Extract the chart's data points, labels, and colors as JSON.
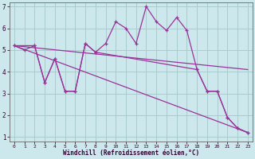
{
  "xlabel": "Windchill (Refroidissement éolien,°C)",
  "background_color": "#cce8ec",
  "grid_color": "#aacccc",
  "line_color": "#993399",
  "xlim": [
    -0.5,
    23.5
  ],
  "ylim": [
    0.8,
    7.2
  ],
  "xticks": [
    0,
    1,
    2,
    3,
    4,
    5,
    6,
    7,
    8,
    9,
    10,
    11,
    12,
    13,
    14,
    15,
    16,
    17,
    18,
    19,
    20,
    21,
    22,
    23
  ],
  "yticks": [
    1,
    2,
    3,
    4,
    5,
    6,
    7
  ],
  "series": [
    {
      "x": [
        0,
        1,
        2,
        3,
        4,
        5,
        6,
        7,
        8,
        9,
        10,
        11,
        12,
        13,
        14,
        15,
        16,
        17,
        18,
        19,
        20,
        21,
        22,
        23
      ],
      "y": [
        5.2,
        5.0,
        5.2,
        3.5,
        4.6,
        3.1,
        3.1,
        5.3,
        4.9,
        5.3,
        6.3,
        6.0,
        5.3,
        7.0,
        6.3,
        5.9,
        6.5,
        5.9,
        4.1,
        3.1,
        3.1,
        1.9,
        1.4,
        1.2
      ],
      "marker": "+"
    },
    {
      "x": [
        0,
        23
      ],
      "y": [
        5.2,
        4.1
      ],
      "marker": null
    },
    {
      "x": [
        0,
        23
      ],
      "y": [
        5.2,
        1.2
      ],
      "marker": null
    },
    {
      "x": [
        0,
        2,
        3,
        4,
        5,
        6,
        7,
        8,
        18,
        19,
        20,
        21,
        22,
        23
      ],
      "y": [
        5.2,
        5.2,
        3.5,
        4.6,
        3.1,
        3.1,
        5.3,
        4.9,
        4.1,
        3.1,
        3.1,
        1.9,
        1.4,
        1.2
      ],
      "marker": "+"
    }
  ]
}
